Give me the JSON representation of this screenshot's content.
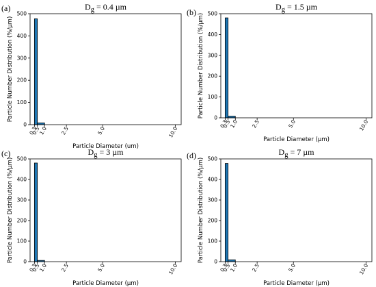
{
  "panel_labels": [
    "(a)",
    "(b)",
    "(c)",
    "(d)"
  ],
  "chart_data": [
    {
      "type": "bar",
      "title": "D",
      "title_subscript": "g",
      "title_suffix": " = 0.4 µm",
      "xlabel": "Particle Diameter (um)",
      "ylabel": "Particle Number Distribution (%/µm)",
      "xlim": [
        0,
        10.4
      ],
      "ylim": [
        0,
        500
      ],
      "xticks": [
        0.3,
        0.5,
        1.0,
        2.5,
        5.0,
        10.0
      ],
      "xtick_labels": [
        "0.3",
        "0.5",
        "1.0",
        "2.5",
        "5.0",
        "10.0"
      ],
      "yticks": [
        0,
        100,
        200,
        300,
        400,
        500
      ],
      "bars": [
        {
          "x0": 0.3,
          "x1": 0.5,
          "value": 477
        },
        {
          "x0": 0.5,
          "x1": 1.0,
          "value": 8
        }
      ]
    },
    {
      "type": "bar",
      "title": "D",
      "title_subscript": "g",
      "title_suffix": " = 1.5 µm",
      "xlabel": "Particle Diameter (µm)",
      "ylabel": "Particle Number Distribution (%/µm)",
      "xlim": [
        0,
        10.4
      ],
      "ylim": [
        0,
        500
      ],
      "xticks": [
        0.3,
        0.5,
        1.0,
        2.5,
        5.0,
        10.0
      ],
      "xtick_labels": [
        "0.3",
        "0.5",
        "1.0",
        "2.5",
        "5.0",
        "10.0"
      ],
      "yticks": [
        0,
        100,
        200,
        300,
        400,
        500
      ],
      "bars": [
        {
          "x0": 0.3,
          "x1": 0.5,
          "value": 480
        },
        {
          "x0": 0.5,
          "x1": 1.0,
          "value": 8
        }
      ]
    },
    {
      "type": "bar",
      "title": "D",
      "title_subscript": "g",
      "title_suffix": " = 3 µm",
      "xlabel": "Particle Diameter (µm)",
      "ylabel": "Particle Number Distribution (%/µm)",
      "xlim": [
        0,
        10.4
      ],
      "ylim": [
        0,
        500
      ],
      "xticks": [
        0.3,
        0.5,
        1.0,
        2.5,
        5.0,
        10.0
      ],
      "xtick_labels": [
        "0.3",
        "0.5",
        "1.0",
        "2.5",
        "5.0",
        "10.0"
      ],
      "yticks": [
        0,
        100,
        200,
        300,
        400,
        500
      ],
      "bars": [
        {
          "x0": 0.3,
          "x1": 0.5,
          "value": 480
        },
        {
          "x0": 0.5,
          "x1": 1.0,
          "value": 6
        }
      ]
    },
    {
      "type": "bar",
      "title": "D",
      "title_subscript": "g",
      "title_suffix": " = 7 µm",
      "xlabel": "Particle Diameter (µm)",
      "ylabel": "Particle Number Distribution (%/µm)",
      "xlim": [
        0,
        10.4
      ],
      "ylim": [
        0,
        500
      ],
      "xticks": [
        0.3,
        0.5,
        1.0,
        2.5,
        5.0,
        10.0
      ],
      "xtick_labels": [
        "0.3",
        "0.5",
        "1.0",
        "2.5",
        "5.0",
        "10.0"
      ],
      "yticks": [
        0,
        100,
        200,
        300,
        400,
        500
      ],
      "bars": [
        {
          "x0": 0.3,
          "x1": 0.5,
          "value": 478
        },
        {
          "x0": 0.5,
          "x1": 1.0,
          "value": 9
        }
      ]
    }
  ],
  "colors": {
    "bar_fill": "#1f77b4",
    "bar_edge": "#000000",
    "axis": "#000000"
  }
}
